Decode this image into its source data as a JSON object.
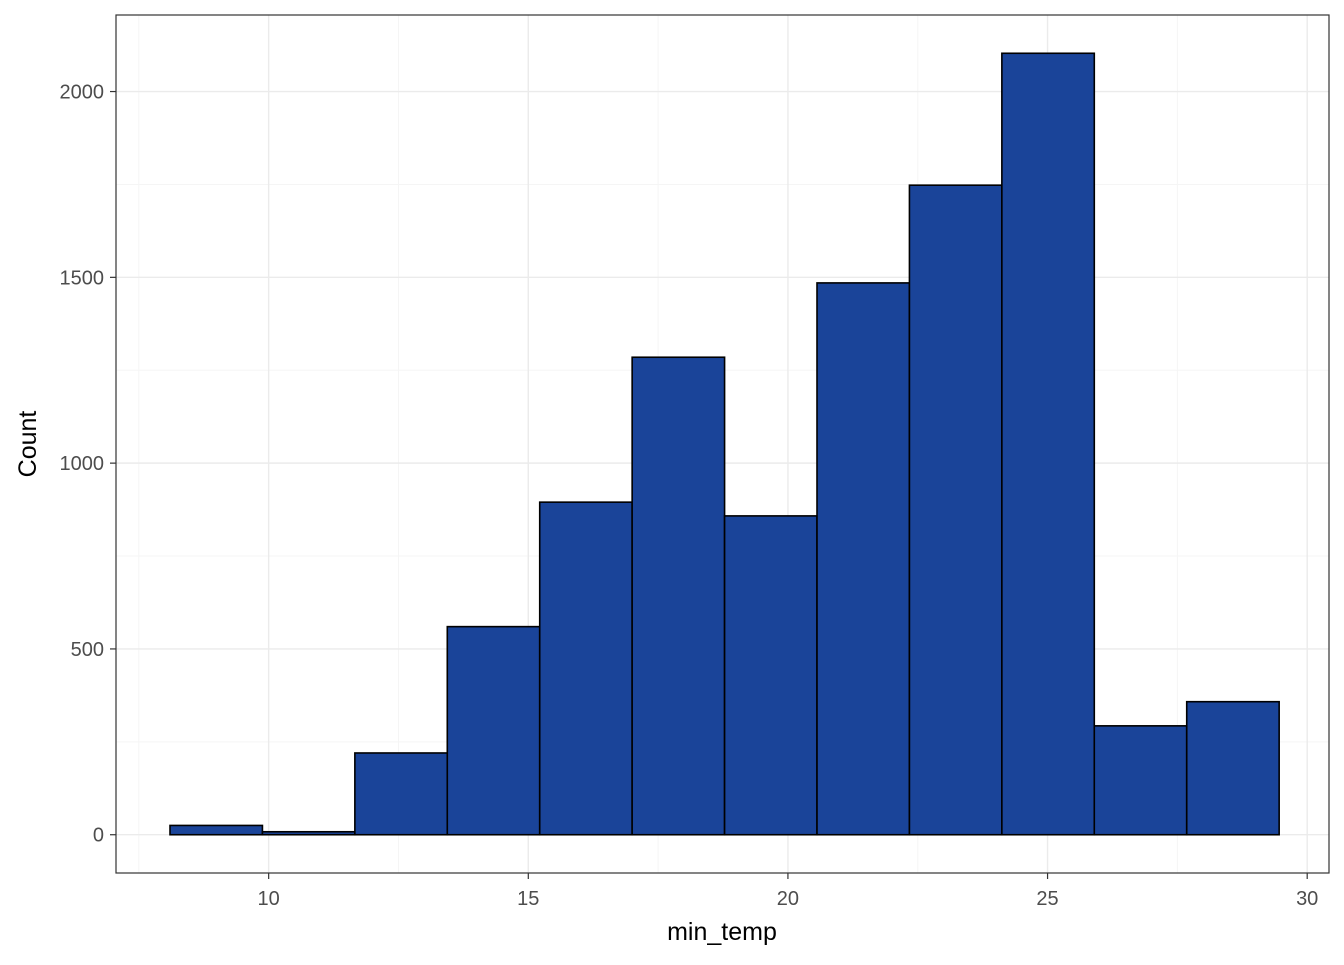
{
  "chart_data": {
    "type": "bar",
    "subtype": "histogram",
    "title": "",
    "xlabel": "min_temp",
    "ylabel": "Count",
    "xlim": [
      7.06,
      30.42
    ],
    "ylim": [
      -103,
      2206
    ],
    "x_ticks": [
      10,
      15,
      20,
      25,
      30
    ],
    "x_tick_labels": [
      "10",
      "15",
      "20",
      "25",
      "30"
    ],
    "y_ticks": [
      0,
      500,
      1000,
      1500,
      2000
    ],
    "y_tick_labels": [
      "0",
      "500",
      "1000",
      "1500",
      "2000"
    ],
    "grid": true,
    "legend": "none",
    "bins": [
      {
        "x0": 8.1,
        "x1": 9.88,
        "count": 25
      },
      {
        "x0": 9.88,
        "x1": 11.66,
        "count": 8
      },
      {
        "x0": 11.66,
        "x1": 13.44,
        "count": 220
      },
      {
        "x0": 13.44,
        "x1": 15.22,
        "count": 560
      },
      {
        "x0": 15.22,
        "x1": 17.0,
        "count": 895
      },
      {
        "x0": 17.0,
        "x1": 18.78,
        "count": 1285
      },
      {
        "x0": 18.78,
        "x1": 20.56,
        "count": 858
      },
      {
        "x0": 20.56,
        "x1": 22.34,
        "count": 1485
      },
      {
        "x0": 22.34,
        "x1": 24.12,
        "count": 1748
      },
      {
        "x0": 24.12,
        "x1": 25.9,
        "count": 2103
      },
      {
        "x0": 25.9,
        "x1": 27.68,
        "count": 293
      },
      {
        "x0": 27.68,
        "x1": 29.46,
        "count": 358
      }
    ],
    "colors": {
      "bar_fill": "#1A4499",
      "bar_stroke": "#000000",
      "panel_border": "#333333",
      "grid_major": "#ebebeb",
      "grid_minor": "#f5f5f5",
      "tick_label": "#4d4d4d",
      "axis_title": "#000000"
    }
  }
}
